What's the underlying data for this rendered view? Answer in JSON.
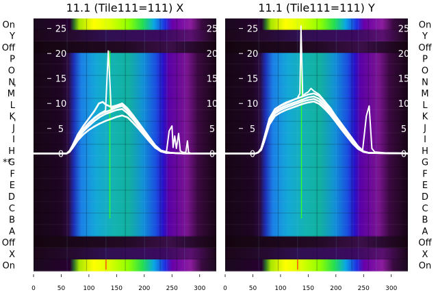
{
  "chart_data": [
    {
      "type": "heatmap",
      "title": "11.1 (Tile111=111) X",
      "xticks": [
        0,
        50,
        100,
        150,
        200,
        250,
        300
      ],
      "xlim": [
        0,
        330
      ],
      "yticks": [
        0,
        5,
        10,
        15,
        20,
        25
      ],
      "ylim": [
        -23.5,
        27
      ],
      "rows": [
        "On",
        "Y",
        "Off",
        "P",
        "O",
        "N",
        "M",
        "L",
        "K",
        "J",
        "I",
        "H",
        "G",
        "F",
        "E",
        "D",
        "C",
        "B",
        "A",
        "Off",
        "X",
        "On"
      ],
      "row_markers": [
        {
          "row": "G",
          "text": "**"
        },
        {
          "row": "M",
          "text": "'"
        },
        {
          "row": "J",
          "text": "'"
        }
      ],
      "overlay_series": [
        {
          "x": [
            0,
            60,
            65,
            70,
            80,
            90,
            100,
            110,
            120,
            130,
            135,
            138,
            140,
            145,
            150,
            160,
            170,
            180,
            190,
            200,
            210,
            220,
            230,
            240,
            245,
            250,
            252,
            255,
            258,
            262,
            265,
            270,
            275,
            278,
            280,
            285,
            300,
            330
          ],
          "y": [
            0,
            0,
            0.5,
            1.5,
            3.5,
            5,
            6.2,
            7.2,
            8,
            8.6,
            20.5,
            14,
            9,
            9.2,
            9.5,
            9.8,
            8.8,
            7.5,
            6,
            4.5,
            3,
            1.5,
            0.5,
            0.3,
            4.5,
            5.5,
            1.2,
            3.5,
            1,
            4,
            0.5,
            0.2,
            0.2,
            2.5,
            0.2,
            0,
            0,
            0
          ]
        },
        {
          "x": [
            0,
            60,
            65,
            70,
            80,
            90,
            100,
            110,
            120,
            130,
            140,
            150,
            160,
            170,
            180,
            190,
            200,
            210,
            220,
            230,
            240,
            250,
            270,
            330
          ],
          "y": [
            0,
            0,
            0.4,
            1.2,
            3,
            4.4,
            5.5,
            6.5,
            7.3,
            7.9,
            8.3,
            8.7,
            8.9,
            8,
            6.8,
            5.4,
            4,
            2.6,
            1.2,
            0.4,
            0.2,
            0.1,
            0,
            0
          ]
        },
        {
          "x": [
            0,
            60,
            65,
            70,
            80,
            90,
            100,
            110,
            120,
            130,
            140,
            150,
            160,
            170,
            180,
            190,
            200,
            210,
            220,
            230,
            240,
            250,
            270,
            330
          ],
          "y": [
            0,
            0,
            0.5,
            1.3,
            3.2,
            4.8,
            6,
            7,
            7.8,
            8.3,
            8.7,
            9.2,
            9.5,
            8.5,
            7.2,
            5.8,
            4.3,
            2.8,
            1.4,
            0.5,
            0.2,
            0.1,
            0,
            0
          ]
        },
        {
          "x": [
            0,
            60,
            65,
            70,
            80,
            90,
            100,
            110,
            118,
            125,
            130,
            140,
            150,
            160,
            170,
            180,
            190,
            200,
            210,
            220,
            230,
            240,
            250,
            270,
            330
          ],
          "y": [
            0,
            0,
            0.5,
            1.5,
            3.8,
            5.5,
            7,
            8.5,
            10,
            10.3,
            9.8,
            9.3,
            9.6,
            10,
            9,
            7.6,
            6.1,
            4.6,
            3.1,
            1.6,
            0.6,
            0.3,
            0.1,
            0,
            0
          ]
        },
        {
          "x": [
            0,
            60,
            65,
            70,
            80,
            90,
            100,
            110,
            120,
            130,
            140,
            150,
            160,
            170,
            180,
            190,
            200,
            210,
            220,
            230,
            240,
            250,
            270,
            330
          ],
          "y": [
            0,
            0,
            0.3,
            1,
            2.6,
            3.8,
            4.7,
            5.4,
            6,
            6.5,
            6.9,
            7.3,
            7.6,
            7.2,
            6.1,
            4.9,
            3.6,
            2.3,
            1.1,
            0.4,
            0.1,
            0.1,
            0,
            0
          ]
        }
      ]
    },
    {
      "type": "heatmap",
      "title": "11.1 (Tile111=111) Y",
      "xticks": [
        0,
        50,
        100,
        150,
        200,
        250,
        300
      ],
      "xlim": [
        0,
        330
      ],
      "yticks": [
        0,
        5,
        10,
        15,
        20,
        25
      ],
      "ylim": [
        -23.5,
        27
      ],
      "rows": [
        "On",
        "Y",
        "Off",
        "P",
        "O",
        "N",
        "M",
        "L",
        "K",
        "J",
        "I",
        "H",
        "G",
        "F",
        "E",
        "D",
        "C",
        "B",
        "A",
        "Off",
        "X",
        "On"
      ],
      "overlay_series": [
        {
          "x": [
            0,
            55,
            60,
            65,
            70,
            80,
            90,
            100,
            110,
            120,
            130,
            135,
            137,
            140,
            145,
            150,
            155,
            160,
            170,
            180,
            190,
            200,
            210,
            220,
            230,
            240,
            245,
            248,
            255,
            260,
            265,
            270,
            300,
            330
          ],
          "y": [
            0,
            0,
            0.3,
            1,
            3,
            7,
            8.8,
            9.5,
            10,
            10.5,
            11,
            12,
            25.5,
            11.5,
            12,
            12.3,
            13,
            12.5,
            11.8,
            10.5,
            9,
            7.5,
            6,
            4.5,
            3,
            1.5,
            1,
            0.5,
            7.5,
            9.5,
            1,
            0.3,
            0,
            0
          ]
        },
        {
          "x": [
            0,
            55,
            60,
            65,
            70,
            80,
            90,
            100,
            110,
            120,
            130,
            140,
            150,
            160,
            170,
            180,
            190,
            200,
            210,
            220,
            230,
            240,
            250,
            260,
            330
          ],
          "y": [
            0,
            0,
            0.2,
            0.8,
            2.5,
            6.3,
            8,
            8.7,
            9.2,
            9.6,
            10,
            10.4,
            10.7,
            10.9,
            10.4,
            9.4,
            8.1,
            6.6,
            5.1,
            3.6,
            2.2,
            1,
            0.3,
            0.1,
            0
          ]
        },
        {
          "x": [
            0,
            55,
            60,
            65,
            70,
            80,
            90,
            100,
            110,
            120,
            130,
            140,
            150,
            160,
            170,
            180,
            190,
            200,
            210,
            220,
            230,
            240,
            250,
            260,
            330
          ],
          "y": [
            0,
            0,
            0.2,
            0.9,
            2.7,
            6.6,
            8.4,
            9.1,
            9.6,
            10,
            10.4,
            10.8,
            11.2,
            11.4,
            10.9,
            9.9,
            8.6,
            7,
            5.5,
            3.9,
            2.4,
            1.1,
            0.4,
            0.1,
            0
          ]
        },
        {
          "x": [
            0,
            55,
            60,
            65,
            70,
            80,
            90,
            100,
            110,
            120,
            130,
            140,
            150,
            160,
            170,
            180,
            190,
            200,
            210,
            220,
            230,
            240,
            250,
            260,
            330
          ],
          "y": [
            0,
            0,
            0.2,
            1,
            2.9,
            7,
            8.9,
            9.6,
            10.2,
            10.6,
            11,
            11.4,
            11.8,
            12,
            11.5,
            10.4,
            9.1,
            7.4,
            5.8,
            4.2,
            2.6,
            1.2,
            0.4,
            0.1,
            0
          ]
        },
        {
          "x": [
            0,
            55,
            60,
            65,
            70,
            80,
            90,
            100,
            110,
            120,
            130,
            140,
            150,
            160,
            170,
            180,
            190,
            200,
            210,
            220,
            230,
            240,
            250,
            260,
            330
          ],
          "y": [
            0,
            0,
            0.2,
            0.7,
            2.2,
            5.8,
            7.5,
            8.2,
            8.7,
            9.1,
            9.5,
            9.9,
            10.2,
            10.4,
            9.9,
            8.9,
            7.7,
            6.3,
            4.8,
            3.4,
            2,
            0.9,
            0.3,
            0.1,
            0
          ]
        }
      ]
    }
  ]
}
